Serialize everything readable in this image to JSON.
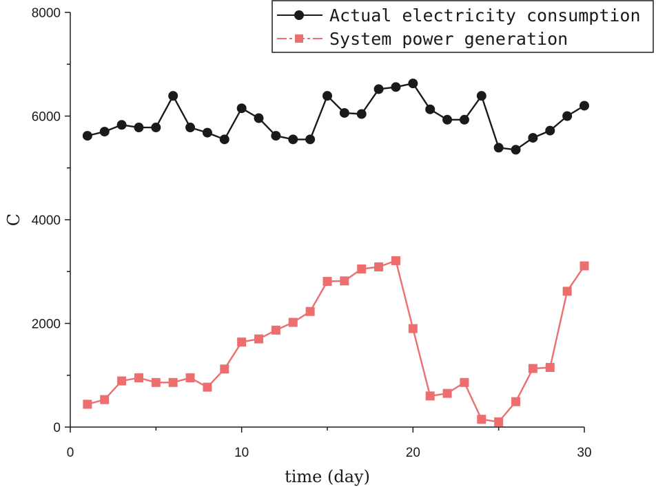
{
  "chart_data": {
    "type": "line",
    "xlabel": "time (day)",
    "ylabel": "C",
    "xlim": [
      0,
      30
    ],
    "ylim": [
      0,
      8000
    ],
    "xticks": [
      0,
      10,
      20,
      30
    ],
    "yticks": [
      0,
      2000,
      4000,
      6000,
      8000
    ],
    "grid": false,
    "legend_position": "top-right",
    "x": [
      1,
      2,
      3,
      4,
      5,
      6,
      7,
      8,
      9,
      10,
      11,
      12,
      13,
      14,
      15,
      16,
      17,
      18,
      19,
      20,
      21,
      22,
      23,
      24,
      25,
      26,
      27,
      28,
      29,
      30
    ],
    "series": [
      {
        "name": "Actual electricity consumption",
        "color": "#1a1a1a",
        "marker": "circle",
        "values": [
          5620,
          5700,
          5830,
          5780,
          5780,
          6390,
          5780,
          5680,
          5550,
          6150,
          5960,
          5620,
          5550,
          5550,
          6390,
          6060,
          6040,
          6520,
          6560,
          6630,
          6130,
          5930,
          5930,
          6390,
          5390,
          5350,
          5580,
          5720,
          6000,
          6200
        ]
      },
      {
        "name": "System power generation",
        "color": "#ec6e6e",
        "marker": "square",
        "values": [
          440,
          530,
          890,
          950,
          860,
          860,
          950,
          770,
          1120,
          1640,
          1700,
          1870,
          2020,
          2230,
          2810,
          2820,
          3050,
          3090,
          3210,
          1900,
          600,
          650,
          860,
          150,
          100,
          490,
          1130,
          1150,
          2620,
          3110
        ]
      }
    ]
  }
}
